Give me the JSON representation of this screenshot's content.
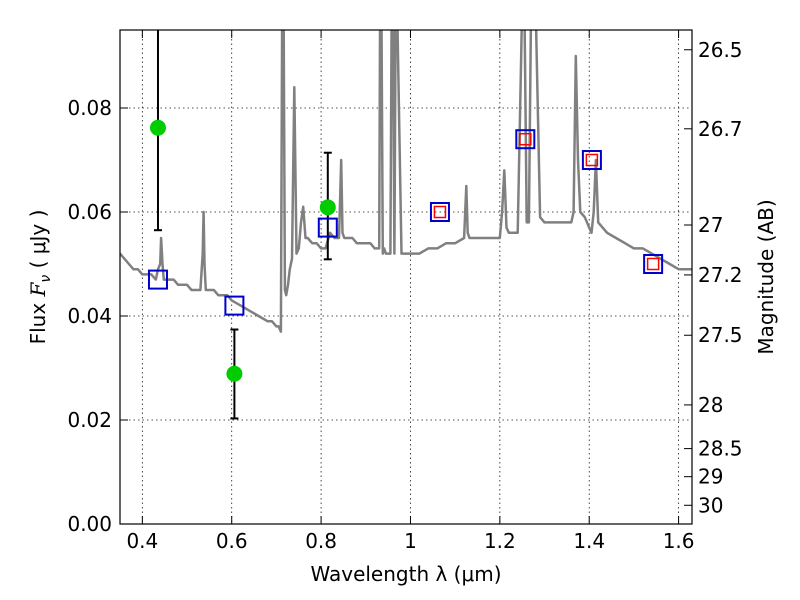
{
  "chart_data": {
    "type": "scatter",
    "title": "",
    "xlabel": "Wavelength  λ (μm)",
    "ylabel": "Flux  F_ν  ( μJy )",
    "ylabel_right": "Magnitude (AB)",
    "xlim": [
      0.35,
      1.63
    ],
    "ylim": [
      0.0,
      0.095
    ],
    "grid": true,
    "x_ticks": [
      0.4,
      0.6,
      0.8,
      1.0,
      1.2,
      1.4,
      1.6
    ],
    "x_tick_labels": [
      "0.4",
      "0.6",
      "0.8",
      "1",
      "1.2",
      "1.4",
      "1.6"
    ],
    "y_ticks": [
      0.0,
      0.02,
      0.04,
      0.06,
      0.08
    ],
    "y_tick_labels": [
      "0.00",
      "0.02",
      "0.04",
      "0.06",
      "0.08"
    ],
    "right_ticks": [
      {
        "flux": 0.0912,
        "label": "26.5"
      },
      {
        "flux": 0.076,
        "label": "26.7"
      },
      {
        "flux": 0.0575,
        "label": "27"
      },
      {
        "flux": 0.0479,
        "label": "27.2"
      },
      {
        "flux": 0.0363,
        "label": "27.5"
      },
      {
        "flux": 0.0229,
        "label": "28"
      },
      {
        "flux": 0.0145,
        "label": "28.5"
      },
      {
        "flux": 0.0091,
        "label": "29"
      },
      {
        "flux": 0.0036,
        "label": "30"
      }
    ],
    "model_spectrum": {
      "color": "#808080",
      "x": [
        0.35,
        0.36,
        0.37,
        0.38,
        0.39,
        0.4,
        0.41,
        0.42,
        0.43,
        0.435,
        0.44,
        0.442,
        0.445,
        0.448,
        0.45,
        0.46,
        0.47,
        0.48,
        0.49,
        0.5,
        0.51,
        0.52,
        0.53,
        0.535,
        0.537,
        0.539,
        0.542,
        0.55,
        0.56,
        0.57,
        0.58,
        0.59,
        0.6,
        0.62,
        0.64,
        0.66,
        0.68,
        0.69,
        0.7,
        0.705,
        0.71,
        0.713,
        0.716,
        0.719,
        0.722,
        0.726,
        0.73,
        0.735,
        0.74,
        0.745,
        0.75,
        0.755,
        0.76,
        0.765,
        0.77,
        0.78,
        0.79,
        0.8,
        0.81,
        0.82,
        0.83,
        0.84,
        0.845,
        0.848,
        0.852,
        0.86,
        0.87,
        0.88,
        0.89,
        0.9,
        0.91,
        0.92,
        0.93,
        0.932,
        0.935,
        0.938,
        0.941,
        0.945,
        0.95,
        0.955,
        0.958,
        0.961,
        0.964,
        0.967,
        0.97,
        0.98,
        1.0,
        1.02,
        1.04,
        1.06,
        1.08,
        1.1,
        1.12,
        1.125,
        1.128,
        1.132,
        1.14,
        1.16,
        1.18,
        1.2,
        1.205,
        1.21,
        1.215,
        1.22,
        1.24,
        1.25,
        1.255,
        1.26,
        1.265,
        1.27,
        1.28,
        1.29,
        1.3,
        1.32,
        1.34,
        1.36,
        1.365,
        1.37,
        1.375,
        1.38,
        1.39,
        1.4,
        1.405,
        1.41,
        1.415,
        1.42,
        1.44,
        1.46,
        1.48,
        1.5,
        1.52,
        1.54,
        1.56,
        1.58,
        1.6,
        1.63
      ],
      "y": [
        0.052,
        0.051,
        0.05,
        0.049,
        0.049,
        0.048,
        0.048,
        0.048,
        0.047,
        0.049,
        0.05,
        0.055,
        0.05,
        0.047,
        0.047,
        0.047,
        0.047,
        0.046,
        0.046,
        0.046,
        0.045,
        0.045,
        0.045,
        0.052,
        0.06,
        0.05,
        0.045,
        0.045,
        0.045,
        0.044,
        0.044,
        0.044,
        0.043,
        0.042,
        0.041,
        0.04,
        0.039,
        0.039,
        0.038,
        0.038,
        0.037,
        0.1,
        0.1,
        0.045,
        0.044,
        0.046,
        0.049,
        0.051,
        0.084,
        0.052,
        0.053,
        0.058,
        0.061,
        0.055,
        0.055,
        0.054,
        0.054,
        0.053,
        0.053,
        0.056,
        0.055,
        0.055,
        0.07,
        0.056,
        0.055,
        0.055,
        0.055,
        0.054,
        0.054,
        0.054,
        0.054,
        0.053,
        0.053,
        0.1,
        0.1,
        0.052,
        0.053,
        0.052,
        0.052,
        0.052,
        0.1,
        0.1,
        0.052,
        0.1,
        0.1,
        0.052,
        0.052,
        0.052,
        0.053,
        0.053,
        0.054,
        0.054,
        0.055,
        0.065,
        0.056,
        0.055,
        0.055,
        0.055,
        0.055,
        0.055,
        0.06,
        0.068,
        0.057,
        0.056,
        0.056,
        0.1,
        0.1,
        0.058,
        0.058,
        0.1,
        0.1,
        0.059,
        0.058,
        0.058,
        0.058,
        0.058,
        0.06,
        0.09,
        0.07,
        0.06,
        0.059,
        0.057,
        0.056,
        0.06,
        0.07,
        0.058,
        0.056,
        0.055,
        0.054,
        0.053,
        0.053,
        0.052,
        0.051,
        0.05,
        0.049,
        0.049
      ]
    },
    "model_magnitudes": {
      "marker": "open-square",
      "color": "#0000cc",
      "x": [
        0.435,
        0.606,
        0.815,
        1.066,
        1.257,
        1.406,
        1.543
      ],
      "y": [
        0.047,
        0.042,
        0.057,
        0.06,
        0.074,
        0.07,
        0.05
      ]
    },
    "model_magnitudes_inner": {
      "marker": "open-square-small",
      "color": "#ff0000",
      "x": [
        1.066,
        1.257,
        1.406,
        1.543
      ],
      "y": [
        0.06,
        0.074,
        0.07,
        0.05
      ]
    },
    "observed_photometry": {
      "marker": "filled-circle",
      "color": "#00cc00",
      "x": [
        0.435,
        0.606,
        0.815
      ],
      "y": [
        0.0762,
        0.0289,
        0.0609
      ],
      "yerr_low": [
        0.0565,
        0.0203,
        0.0509
      ],
      "yerr_high": [
        0.095,
        0.0374,
        0.0714
      ]
    }
  }
}
